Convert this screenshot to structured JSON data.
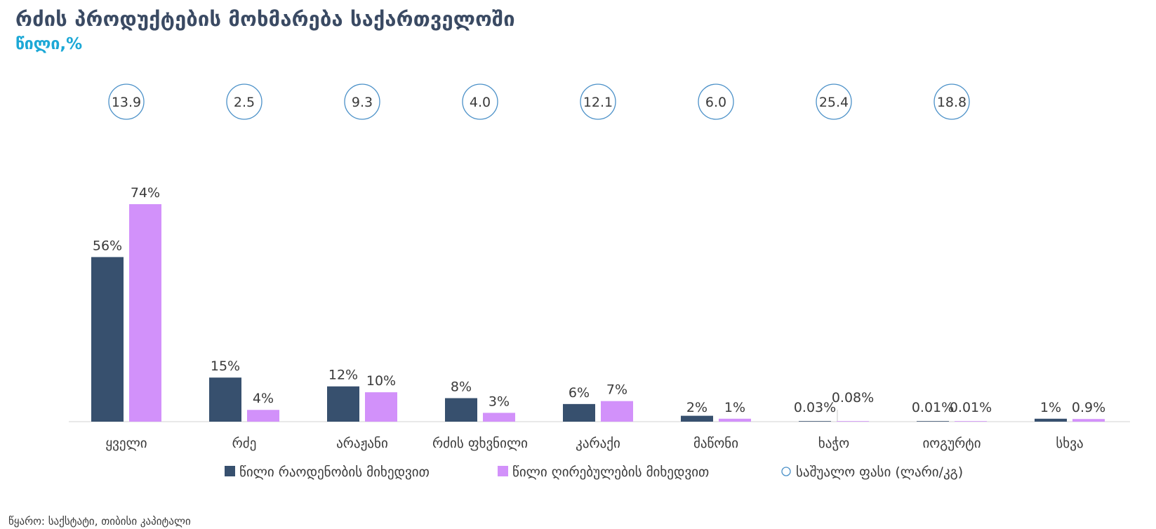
{
  "title": "რძის პროდუქტების მოხმარება საქართველოში",
  "subtitle": "წილი,%",
  "source": "წყარო: საქსტატი, თიბისი კაპიტალი",
  "colors": {
    "quantity": "#37506e",
    "value": "#d291fa",
    "price_ring": "#4a90c8",
    "title": "#3a4a63",
    "subtitle": "#1ca8d6"
  },
  "chart_data": {
    "type": "bar",
    "categories": [
      "ყველი",
      "რძე",
      "არაჟანი",
      "რძის ფხვნილი",
      "კარაქი",
      "მაწონი",
      "ხაჭო",
      "იოგურტი",
      "სხვა"
    ],
    "series": [
      {
        "name": "წილი რაოდენობის მიხედვით",
        "values": [
          56,
          15,
          12,
          8,
          6,
          2,
          0.03,
          0.01,
          1
        ],
        "labels": [
          "56%",
          "15%",
          "12%",
          "8%",
          "6%",
          "2%",
          "0.03%",
          "0.01%",
          "1%"
        ]
      },
      {
        "name": "წილი ღირებულების მიხედვით",
        "values": [
          74,
          4,
          10,
          3,
          7,
          1,
          0.08,
          0.01,
          0.9
        ],
        "labels": [
          "74%",
          "4%",
          "10%",
          "3%",
          "7%",
          "1%",
          "0.08%",
          "0.01%",
          "0.9%"
        ]
      }
    ],
    "price_series": {
      "name": "საშუალო ფასი (ლარი/კგ)",
      "values": [
        13.9,
        2.5,
        9.3,
        4.0,
        12.1,
        6.0,
        25.4,
        18.8
      ],
      "labels": [
        "13.9",
        "2.5",
        "9.3",
        "4.0",
        "12.1",
        "6.0",
        "25.4",
        "18.8"
      ]
    },
    "ylim": [
      0,
      80
    ],
    "legend": "bottom",
    "grid": false
  }
}
